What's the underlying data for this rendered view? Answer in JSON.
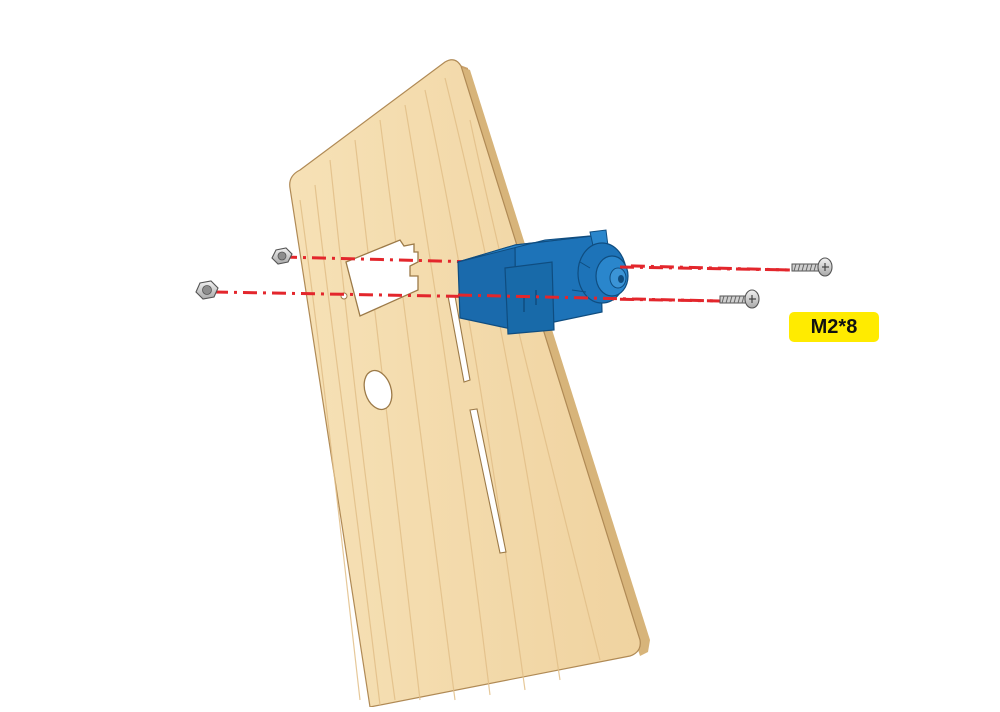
{
  "diagram": {
    "screw_size_label": "M2*8",
    "parts": [
      "wooden-panel",
      "servo-motor",
      "hex-nut",
      "hex-nut",
      "screw",
      "screw"
    ],
    "colors": {
      "wood": "#f4dcae",
      "wood_grain": "#e6c58f",
      "wood_edge": "#caa06a",
      "servo": "#1d73b8",
      "servo_dark": "#145a92",
      "guide_line": "#e3262c",
      "label_bg": "#ffeb00",
      "metal": "#d8d8d8"
    }
  }
}
